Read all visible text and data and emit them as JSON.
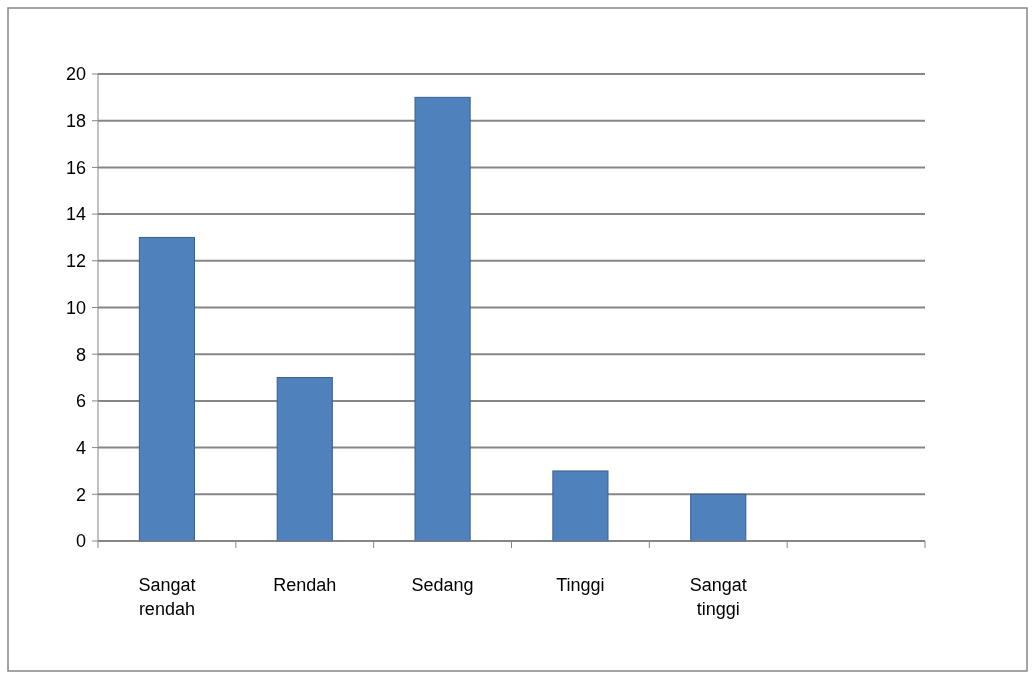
{
  "chart_data": {
    "type": "bar",
    "categories": [
      "Sangat rendah",
      "Rendah",
      "Sedang",
      "Tinggi",
      "Sangat tinggi",
      null
    ],
    "values": [
      13,
      7,
      19,
      3,
      2,
      null
    ],
    "color": "#4f81bd",
    "ylim": [
      0,
      20
    ],
    "yticks": [
      0,
      2,
      4,
      6,
      8,
      10,
      12,
      14,
      16,
      18,
      20
    ],
    "grid": "y"
  }
}
